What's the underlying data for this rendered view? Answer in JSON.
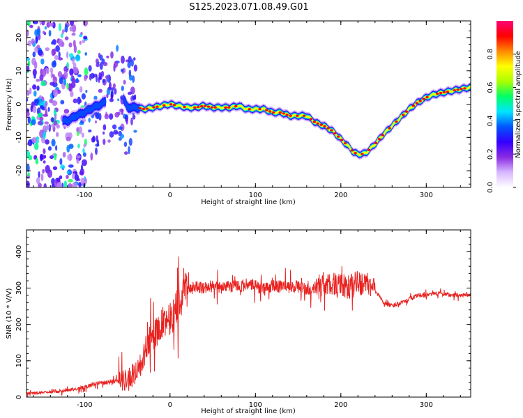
{
  "title": "S125.2023.071.08.49.G01",
  "chart_data": [
    {
      "type": "heatmap",
      "xlabel": "Height of straight line (km)",
      "ylabel": "Frequency (Hz)",
      "xlim": [
        -168,
        352
      ],
      "ylim": [
        -25,
        25
      ],
      "xticks": [
        -100,
        0,
        100,
        200,
        300
      ],
      "yticks": [
        -20,
        -10,
        0,
        10,
        20
      ],
      "colorbar": {
        "label": "Normalized spectral amplitude",
        "range": [
          0,
          1
        ],
        "ticks": [
          "0.0",
          "0.2",
          "0.4",
          "0.6",
          "0.8"
        ],
        "tick_values": [
          0.0,
          0.2,
          0.4,
          0.6,
          0.8
        ],
        "colors": [
          "#ffffff",
          "#d8b8ff",
          "#8a2be2",
          "#3300ff",
          "#0055ff",
          "#00e5ff",
          "#00ff66",
          "#aaff00",
          "#ffff00",
          "#ff8800",
          "#ff0000",
          "#ff0077"
        ]
      },
      "ridge": {
        "x": [
          -120,
          -110,
          -100,
          -90,
          -80,
          -70,
          -60,
          -50,
          -40,
          -30,
          -20,
          -10,
          0,
          10,
          20,
          30,
          40,
          50,
          60,
          70,
          80,
          90,
          100,
          110,
          120,
          130,
          140,
          150,
          160,
          170,
          180,
          190,
          200,
          210,
          215,
          220,
          225,
          230,
          240,
          250,
          260,
          270,
          280,
          290,
          300,
          310,
          320,
          330,
          340,
          350
        ],
        "y": [
          -5,
          -3.5,
          -2.5,
          -1,
          0,
          2,
          5,
          -1,
          -1,
          -1.5,
          -1,
          -0.5,
          0,
          -0.5,
          -1,
          -1,
          -0.5,
          -1,
          -1,
          -1,
          -0.5,
          -1.5,
          -1.5,
          -1.5,
          -2.5,
          -2.5,
          -3.5,
          -3.5,
          -3.5,
          -5.5,
          -6.5,
          -8,
          -10.5,
          -13,
          -14.5,
          -15,
          -15,
          -14.5,
          -12,
          -9,
          -6.5,
          -4,
          -1.5,
          0.5,
          2,
          3,
          3.5,
          4,
          4.5,
          5
        ]
      }
    },
    {
      "type": "line",
      "xlabel": "Height of straight line (km)",
      "ylabel": "SNR (10 * V/V)",
      "xlim": [
        -168,
        352
      ],
      "ylim": [
        0,
        460
      ],
      "xticks": [
        -100,
        0,
        100,
        200,
        300
      ],
      "yticks": [
        0,
        100,
        200,
        300,
        400
      ],
      "color": "#e8211f",
      "series": [
        {
          "x": [
            -168,
            -150,
            -130,
            -110,
            -100,
            -90,
            -80,
            -70,
            -60,
            -50,
            -45,
            -40,
            -35,
            -30,
            -25,
            -20,
            -15,
            -10,
            -5,
            0,
            5,
            10,
            15,
            20,
            25,
            30,
            40,
            50,
            60,
            70,
            80,
            90,
            100,
            110,
            120,
            130,
            140,
            150,
            160,
            170,
            180,
            190,
            200,
            210,
            220,
            230,
            240,
            250,
            260,
            270,
            280,
            290,
            300,
            310,
            320,
            330,
            340,
            352
          ],
          "y": [
            10,
            12,
            16,
            22,
            28,
            35,
            40,
            42,
            45,
            48,
            55,
            70,
            90,
            120,
            150,
            170,
            180,
            200,
            210,
            220,
            230,
            260,
            280,
            295,
            300,
            305,
            300,
            305,
            300,
            305,
            305,
            310,
            305,
            300,
            305,
            305,
            300,
            305,
            295,
            300,
            310,
            310,
            305,
            300,
            315,
            310,
            295,
            260,
            250,
            260,
            270,
            280,
            280,
            285,
            285,
            280,
            280,
            280
          ]
        }
      ]
    }
  ]
}
